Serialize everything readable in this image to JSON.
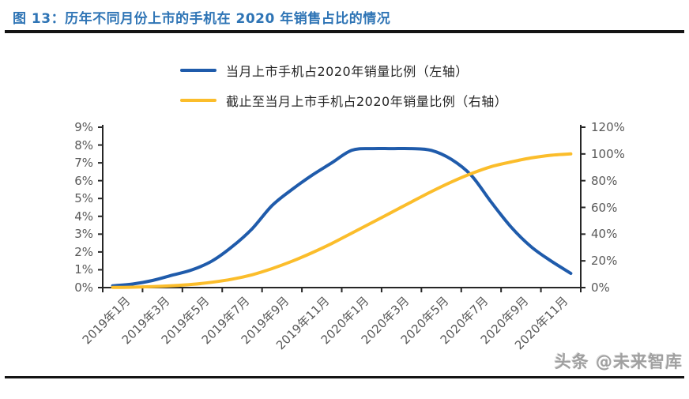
{
  "figure": {
    "title": "图 13：历年不同月份上市的手机在 2020 年销售占比的情况",
    "watermark": "头条 @未来智库"
  },
  "legend": {
    "items": [
      {
        "label": "当月上市手机占2020年销量比例（左轴）",
        "color": "#1f5bab"
      },
      {
        "label": "截止至当月上市手机占2020年销量比例（右轴）",
        "color": "#fbbd2b"
      }
    ]
  },
  "chart_data": {
    "type": "line",
    "x": [
      "2019年1月",
      "2019年2月",
      "2019年3月",
      "2019年4月",
      "2019年5月",
      "2019年6月",
      "2019年7月",
      "2019年8月",
      "2019年9月",
      "2019年10月",
      "2019年11月",
      "2019年12月",
      "2020年1月",
      "2020年2月",
      "2020年3月",
      "2020年4月",
      "2020年5月",
      "2020年6月",
      "2020年7月",
      "2020年8月",
      "2020年9月",
      "2020年10月",
      "2020年11月",
      "2020年12月"
    ],
    "x_tick_labels": [
      "2019年1月",
      "2019年3月",
      "2019年5月",
      "2019年7月",
      "2019年9月",
      "2019年11月",
      "2020年1月",
      "2020年3月",
      "2020年5月",
      "2020年7月",
      "2020年9月",
      "2020年11月"
    ],
    "series": [
      {
        "name": "当月上市手机占2020年销量比例（左轴）",
        "axis": "left",
        "color": "#1f5bab",
        "values": [
          0.1,
          0.2,
          0.4,
          0.7,
          1.0,
          1.5,
          2.3,
          3.3,
          4.6,
          5.5,
          6.3,
          7.0,
          7.7,
          7.8,
          7.8,
          7.8,
          7.7,
          7.2,
          6.3,
          4.8,
          3.4,
          2.3,
          1.5,
          0.8
        ]
      },
      {
        "name": "截止至当月上市手机占2020年销量比例（右轴）",
        "axis": "right",
        "color": "#fbbd2b",
        "values": [
          0.1,
          0.3,
          0.7,
          1.4,
          2.4,
          4.0,
          6.3,
          9.6,
          14.2,
          19.7,
          26.0,
          33.0,
          40.7,
          48.5,
          56.3,
          64.1,
          71.8,
          79.0,
          85.3,
          90.5,
          94.0,
          97.0,
          99.0,
          100.0
        ]
      }
    ],
    "left_axis": {
      "min": 0,
      "max": 9,
      "step": 1,
      "tick_labels": [
        "0%",
        "1%",
        "2%",
        "3%",
        "4%",
        "5%",
        "6%",
        "7%",
        "8%",
        "9%"
      ]
    },
    "right_axis": {
      "min": 0,
      "max": 120,
      "step": 20,
      "tick_labels": [
        "0%",
        "20%",
        "40%",
        "60%",
        "80%",
        "100%",
        "120%"
      ]
    },
    "grid": "off",
    "legend_position": "top",
    "title": "历年不同月份上市的手机在 2020 年销售占比的情况"
  },
  "colors": {
    "title_text": "#2e74b5",
    "axis_line": "#262626",
    "axis_text": "#595959",
    "divider": "#141414",
    "watermark_text": "#a0a0a0"
  }
}
